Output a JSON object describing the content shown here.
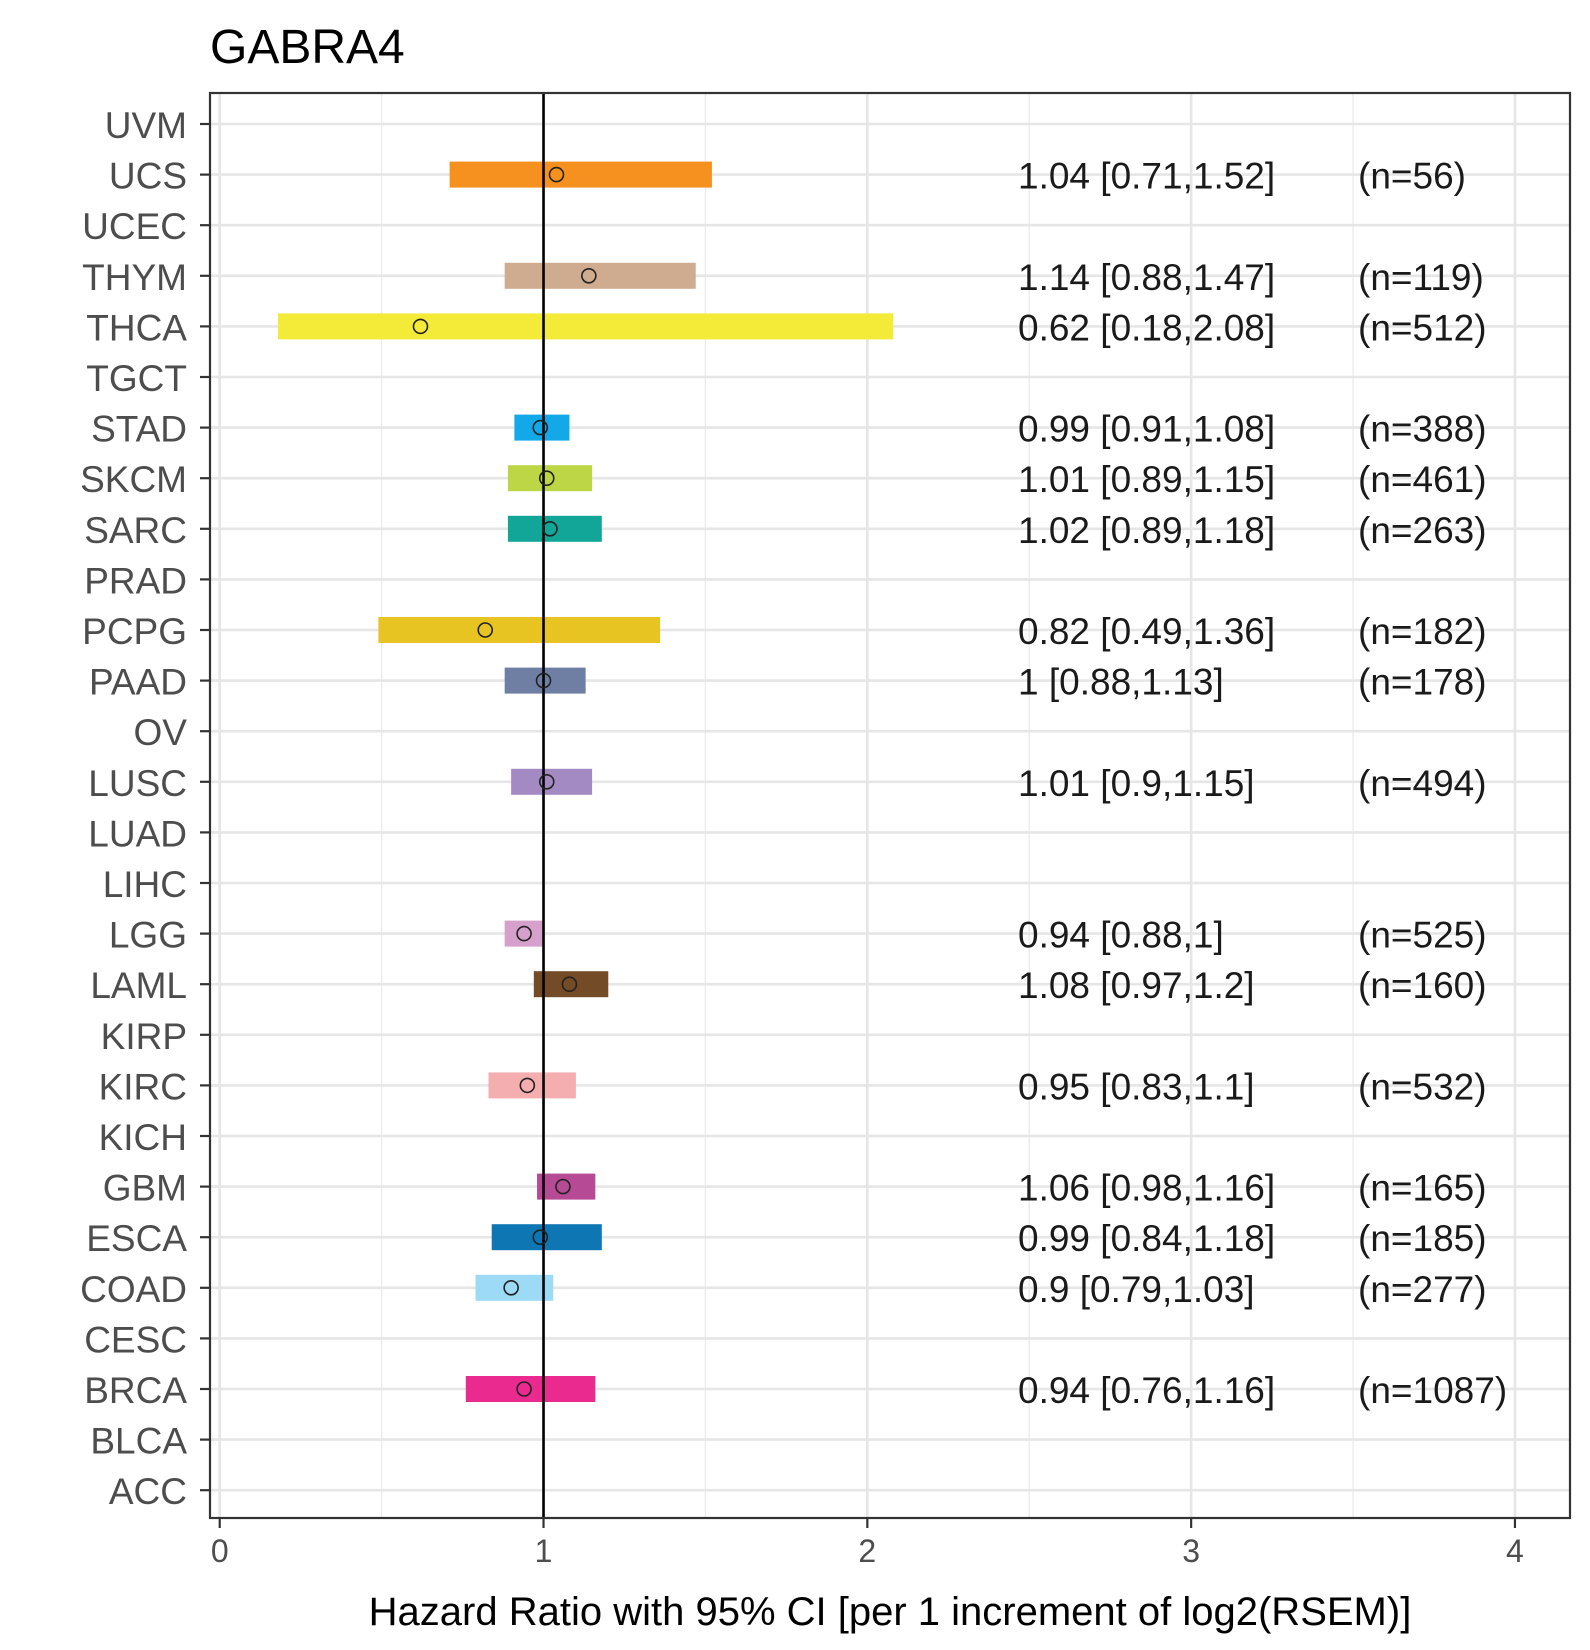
{
  "chart_data": {
    "type": "forest",
    "title": "GABRA4",
    "xlabel": "Hazard Ratio with 95% CI [per 1 increment of log2(RSEM)]",
    "ylabel": "",
    "xlim": [
      -0.03,
      4.17
    ],
    "xticks": [
      0,
      1,
      2,
      3,
      4
    ],
    "xtick_labels": [
      "0",
      "1",
      "2",
      "3",
      "4"
    ],
    "reference_line": 1,
    "grid": true,
    "rows": [
      {
        "label": "UVM"
      },
      {
        "label": "UCS",
        "hr": 1.04,
        "lower": 0.71,
        "upper": 1.52,
        "text": "1.04 [0.71,1.52]",
        "n": "(n=56)",
        "color": "#F6901E"
      },
      {
        "label": "UCEC"
      },
      {
        "label": "THYM",
        "hr": 1.14,
        "lower": 0.88,
        "upper": 1.47,
        "text": "1.14 [0.88,1.47]",
        "n": "(n=119)",
        "color": "#CFAC8F"
      },
      {
        "label": "THCA",
        "hr": 0.62,
        "lower": 0.18,
        "upper": 2.08,
        "text": "0.62 [0.18,2.08]",
        "n": "(n=512)",
        "color": "#F4EB38"
      },
      {
        "label": "TGCT"
      },
      {
        "label": "STAD",
        "hr": 0.99,
        "lower": 0.91,
        "upper": 1.08,
        "text": "0.99 [0.91,1.08]",
        "n": "(n=388)",
        "color": "#13A9E8"
      },
      {
        "label": "SKCM",
        "hr": 1.01,
        "lower": 0.89,
        "upper": 1.15,
        "text": "1.01 [0.89,1.15]",
        "n": "(n=461)",
        "color": "#BCD646"
      },
      {
        "label": "SARC",
        "hr": 1.02,
        "lower": 0.89,
        "upper": 1.18,
        "text": "1.02 [0.89,1.18]",
        "n": "(n=263)",
        "color": "#12A698"
      },
      {
        "label": "PRAD"
      },
      {
        "label": "PCPG",
        "hr": 0.82,
        "lower": 0.49,
        "upper": 1.36,
        "text": "0.82 [0.49,1.36]",
        "n": "(n=182)",
        "color": "#E7C422"
      },
      {
        "label": "PAAD",
        "hr": 1,
        "lower": 0.88,
        "upper": 1.13,
        "text": "1 [0.88,1.13]",
        "n": "(n=178)",
        "color": "#6F7EA3"
      },
      {
        "label": "OV"
      },
      {
        "label": "LUSC",
        "hr": 1.01,
        "lower": 0.9,
        "upper": 1.15,
        "text": "1.01 [0.9,1.15]",
        "n": "(n=494)",
        "color": "#A48AC2"
      },
      {
        "label": "LUAD"
      },
      {
        "label": "LIHC"
      },
      {
        "label": "LGG",
        "hr": 0.94,
        "lower": 0.88,
        "upper": 1,
        "text": "0.94 [0.88,1]",
        "n": "(n=525)",
        "color": "#D6A0CC"
      },
      {
        "label": "LAML",
        "hr": 1.08,
        "lower": 0.97,
        "upper": 1.2,
        "text": "1.08 [0.97,1.2]",
        "n": "(n=160)",
        "color": "#734B27"
      },
      {
        "label": "KIRP"
      },
      {
        "label": "KIRC",
        "hr": 0.95,
        "lower": 0.83,
        "upper": 1.1,
        "text": "0.95 [0.83,1.1]",
        "n": "(n=532)",
        "color": "#F5AEB0"
      },
      {
        "label": "KICH"
      },
      {
        "label": "GBM",
        "hr": 1.06,
        "lower": 0.98,
        "upper": 1.16,
        "text": "1.06 [0.98,1.16]",
        "n": "(n=165)",
        "color": "#B74A95"
      },
      {
        "label": "ESCA",
        "hr": 0.99,
        "lower": 0.84,
        "upper": 1.18,
        "text": "0.99 [0.84,1.18]",
        "n": "(n=185)",
        "color": "#0E76B3"
      },
      {
        "label": "COAD",
        "hr": 0.9,
        "lower": 0.79,
        "upper": 1.03,
        "text": "0.9 [0.79,1.03]",
        "n": "(n=277)",
        "color": "#9CDAF6"
      },
      {
        "label": "CESC"
      },
      {
        "label": "BRCA",
        "hr": 0.94,
        "lower": 0.76,
        "upper": 1.16,
        "text": "0.94 [0.76,1.16]",
        "n": "(n=1087)",
        "color": "#EA2A8E"
      },
      {
        "label": "BLCA"
      },
      {
        "label": "ACC"
      }
    ]
  }
}
